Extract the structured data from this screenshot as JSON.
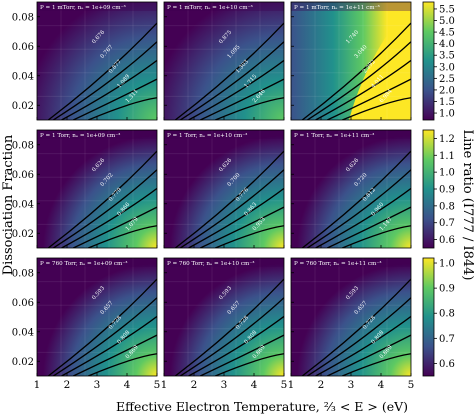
{
  "figure": {
    "xlabel": "Effective Electron Temperature, ⅔ < E > (eV)",
    "ylabel": "Dissociation Fraction",
    "colorbar_label": "Line ratio (I777 / I844)"
  },
  "x_ticks": [
    "1",
    "2",
    "3",
    "4",
    "5"
  ],
  "y_ticks": [
    "0.08",
    "0.06",
    "0.04",
    "0.02"
  ],
  "colormap": [
    "#440154",
    "#3b528b",
    "#21918c",
    "#5ec962",
    "#fde725"
  ],
  "colorbars": [
    {
      "ticks": [
        "1.0",
        "1.5",
        "2.0",
        "2.5",
        "3.0",
        "3.5",
        "4.0",
        "4.5",
        "5.0",
        "5.5"
      ],
      "min": 0.7,
      "max": 5.8
    },
    {
      "ticks": [
        "0.6",
        "0.7",
        "0.8",
        "0.9",
        "1.0",
        "1.1",
        "1.2"
      ],
      "min": 0.55,
      "max": 1.25
    },
    {
      "ticks": [
        "0.6",
        "0.7",
        "0.8",
        "0.9",
        "1.0"
      ],
      "min": 0.55,
      "max": 1.02
    }
  ],
  "chart_data": {
    "type": "heatmap",
    "x_range": [
      1,
      5
    ],
    "y_range": [
      0.01,
      0.09
    ],
    "panels": [
      {
        "row": 0,
        "col": 0,
        "title": "P = 1 mTorr, nₑ = 1e+09 cm⁻³",
        "contours": [
          "0.676",
          "0.767",
          "0.877",
          "1.089",
          "1.311"
        ]
      },
      {
        "row": 0,
        "col": 1,
        "title": "P = 1 mTorr, nₑ = 1e+10 cm⁻³",
        "contours": [
          "0.875",
          "1.095",
          "1.303",
          "1.715",
          "2.646"
        ]
      },
      {
        "row": 0,
        "col": 2,
        "title": "P = 1 mTorr, nₑ = 1e+11 cm⁻³",
        "contours": [
          "1.740",
          "3.040",
          "2.292",
          "4.011",
          "6.984"
        ]
      },
      {
        "row": 1,
        "col": 0,
        "title": "P = 1 Torr, nₑ = 1e+09 cm⁻³",
        "contours": [
          "0.626",
          "0.702",
          "0.779",
          "0.866",
          "1.079"
        ]
      },
      {
        "row": 1,
        "col": 1,
        "title": "P = 1 Torr, nₑ = 1e+10 cm⁻³",
        "contours": [
          "0.626",
          "0.700",
          "0.776",
          "0.863",
          "0.953"
        ]
      },
      {
        "row": 1,
        "col": 2,
        "title": "P = 1 Torr, nₑ = 1e+11 cm⁻³",
        "contours": [
          "0.626",
          "0.720",
          "0.812",
          "0.960",
          "1.147"
        ]
      },
      {
        "row": 2,
        "col": 0,
        "title": "P = 760 Torr, nₑ = 1e+09 cm⁻³",
        "contours": [
          "0.593",
          "0.657",
          "0.728",
          "0.808",
          "0.869"
        ]
      },
      {
        "row": 2,
        "col": 1,
        "title": "P = 760 Torr, nₑ = 1e+10 cm⁻³",
        "contours": [
          "0.593",
          "0.657",
          "0.728",
          "0.808",
          "0.869"
        ]
      },
      {
        "row": 2,
        "col": 2,
        "title": "P = 760 Torr, nₑ = 1e+11 cm⁻³",
        "contours": [
          "0.593",
          "0.657",
          "0.728",
          "0.808",
          "0.869"
        ]
      }
    ]
  }
}
